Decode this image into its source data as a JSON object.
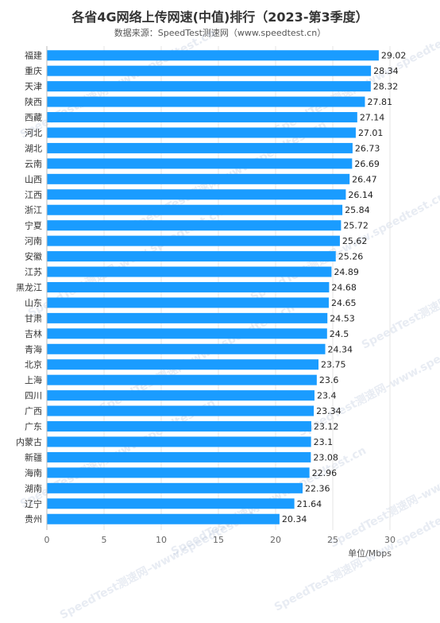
{
  "header": {
    "title": "各省4G网络上传网速(中值)排行（2023-第3季度）",
    "subtitle": "数据来源：SpeedTest测速网（www.speedtest.cn）"
  },
  "watermark": {
    "text": "SpeedTest测速网–www.speedtest.cn 尊重版权，盗图/数据必究"
  },
  "colors": {
    "bar": "#1a9cff",
    "axis": "#999999",
    "grid": "#e6e6e6"
  },
  "chart_data": {
    "type": "bar",
    "orientation": "horizontal",
    "categories": [
      "福建",
      "重庆",
      "天津",
      "陕西",
      "西藏",
      "河北",
      "湖北",
      "云南",
      "山西",
      "江西",
      "浙江",
      "宁夏",
      "河南",
      "安徽",
      "江苏",
      "黑龙江",
      "山东",
      "甘肃",
      "吉林",
      "青海",
      "北京",
      "上海",
      "四川",
      "广西",
      "广东",
      "内蒙古",
      "新疆",
      "海南",
      "湖南",
      "辽宁",
      "贵州"
    ],
    "values": [
      29.02,
      28.34,
      28.32,
      27.81,
      27.14,
      27.01,
      26.73,
      26.69,
      26.47,
      26.14,
      25.84,
      25.72,
      25.62,
      25.26,
      24.89,
      24.68,
      24.65,
      24.53,
      24.5,
      24.34,
      23.75,
      23.6,
      23.4,
      23.34,
      23.12,
      23.1,
      23.08,
      22.96,
      22.36,
      21.64,
      20.34
    ],
    "value_labels": [
      "29.02",
      "28.34",
      "28.32",
      "27.81",
      "27.14",
      "27.01",
      "26.73",
      "26.69",
      "26.47",
      "26.14",
      "25.84",
      "25.72",
      "25.62",
      "25.26",
      "24.89",
      "24.68",
      "24.65",
      "24.53",
      "24.5",
      "24.34",
      "23.75",
      "23.6",
      "23.4",
      "23.34",
      "23.12",
      "23.1",
      "23.08",
      "22.96",
      "22.36",
      "21.64",
      "20.34"
    ],
    "xticks": [
      "0",
      "5",
      "10",
      "15",
      "20",
      "25",
      "30"
    ],
    "xlim": [
      0,
      30
    ],
    "xlabel": "单位/Mbps",
    "grid": true
  }
}
